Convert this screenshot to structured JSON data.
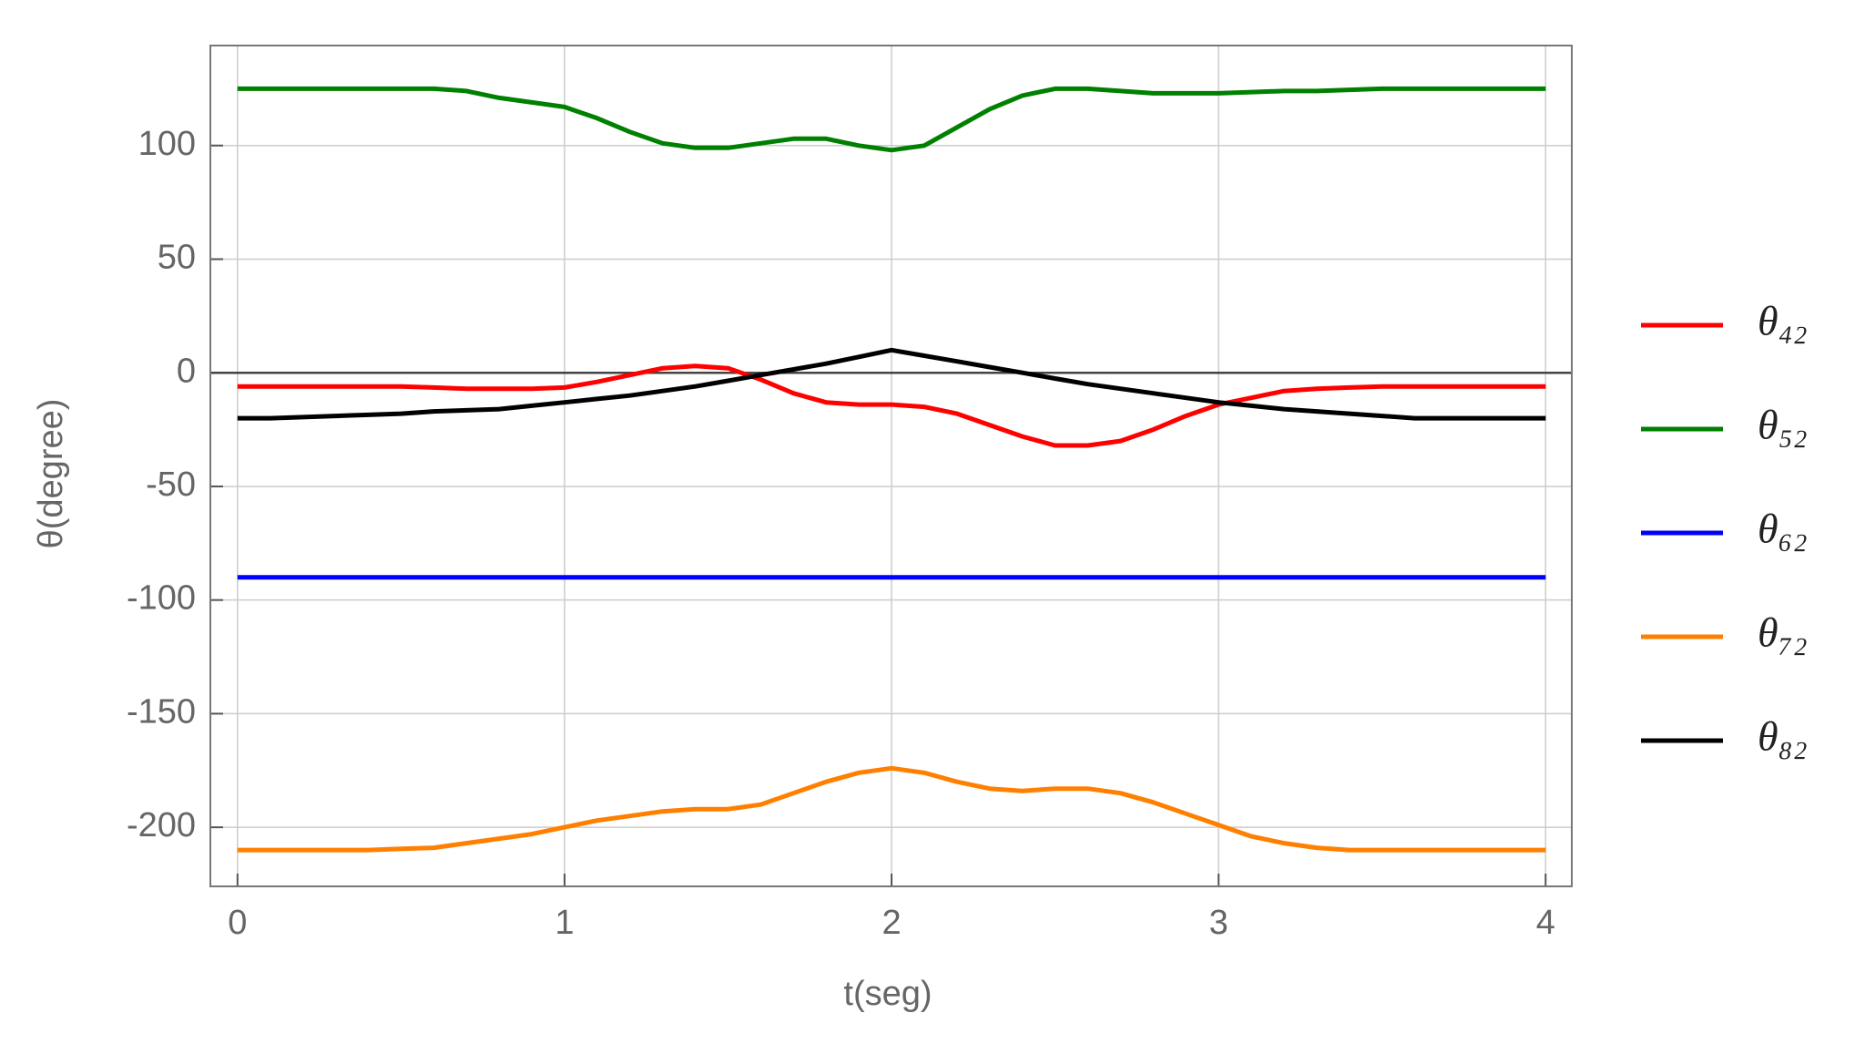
{
  "chart_data": {
    "type": "line",
    "x_label": "t(seg)",
    "y_label": "θ(degree)",
    "x": [
      0,
      0.1,
      0.2,
      0.3,
      0.4,
      0.5,
      0.6,
      0.7,
      0.8,
      0.9,
      1,
      1.1,
      1.2,
      1.3,
      1.4,
      1.5,
      1.6,
      1.7,
      1.8,
      1.9,
      2,
      2.1,
      2.2,
      2.3,
      2.4,
      2.5,
      2.6,
      2.7,
      2.8,
      2.9,
      3,
      3.1,
      3.2,
      3.3,
      3.4,
      3.5,
      3.6,
      3.7,
      3.8,
      3.9,
      4
    ],
    "series": [
      {
        "name": "θ₄₂",
        "color": "#ff0000",
        "values": [
          -6,
          -6,
          -6,
          -6,
          -6,
          -6,
          -6.5,
          -7,
          -7,
          -7,
          -6.5,
          -4,
          -1,
          2,
          3,
          2,
          -3,
          -9,
          -13,
          -14,
          -14,
          -15,
          -18,
          -23,
          -28,
          -32,
          -32,
          -30,
          -25,
          -19,
          -14,
          -11,
          -8,
          -7,
          -6.5,
          -6,
          -6,
          -6,
          -6,
          -6,
          -6
        ]
      },
      {
        "name": "θ₅₂",
        "color": "#008000",
        "values": [
          125,
          125,
          125,
          125,
          125,
          125,
          125,
          124,
          121,
          119,
          117,
          112,
          106,
          101,
          99,
          99,
          101,
          103,
          103,
          100,
          98,
          100,
          108,
          116,
          122,
          125,
          125,
          124,
          123,
          123,
          123,
          123.5,
          124,
          124,
          124.5,
          125,
          125,
          125,
          125,
          125,
          125
        ]
      },
      {
        "name": "θ₆₂",
        "color": "#0000ff",
        "values": [
          -90,
          -90,
          -90,
          -90,
          -90,
          -90,
          -90,
          -90,
          -90,
          -90,
          -90,
          -90,
          -90,
          -90,
          -90,
          -90,
          -90,
          -90,
          -90,
          -90,
          -90,
          -90,
          -90,
          -90,
          -90,
          -90,
          -90,
          -90,
          -90,
          -90,
          -90,
          -90,
          -90,
          -90,
          -90,
          -90,
          -90,
          -90,
          -90,
          -90,
          -90
        ]
      },
      {
        "name": "θ₇₂",
        "color": "#ff8000",
        "values": [
          -210,
          -210,
          -210,
          -210,
          -210,
          -209.5,
          -209,
          -207,
          -205,
          -203,
          -200,
          -197,
          -195,
          -193,
          -192,
          -192,
          -190,
          -185,
          -180,
          -176,
          -174,
          -176,
          -180,
          -183,
          -184,
          -183,
          -183,
          -185,
          -189,
          -194,
          -199,
          -204,
          -207,
          -209,
          -210,
          -210,
          -210,
          -210,
          -210,
          -210,
          -210
        ]
      },
      {
        "name": "θ₈₂",
        "color": "#000000",
        "values": [
          -20,
          -20,
          -19.5,
          -19,
          -18.5,
          -18,
          -17,
          -16.5,
          -16,
          -14.5,
          -13,
          -11.5,
          -10,
          -8,
          -6,
          -3.5,
          -1,
          1.5,
          4,
          7,
          10,
          7.5,
          5,
          2.5,
          0,
          -2.5,
          -5,
          -7,
          -9,
          -11,
          -13,
          -14.5,
          -16,
          -17,
          -18,
          -19,
          -20,
          -20,
          -20,
          -20,
          -20
        ]
      }
    ],
    "xlim": [
      -0.083,
      4.08
    ],
    "ylim": [
      -226,
      144
    ],
    "xticks": [
      0,
      1,
      2,
      3,
      4
    ],
    "yticks": [
      -200,
      -150,
      -100,
      -50,
      0,
      50,
      100
    ],
    "grid": true,
    "zero_line": true,
    "legend": "right"
  }
}
